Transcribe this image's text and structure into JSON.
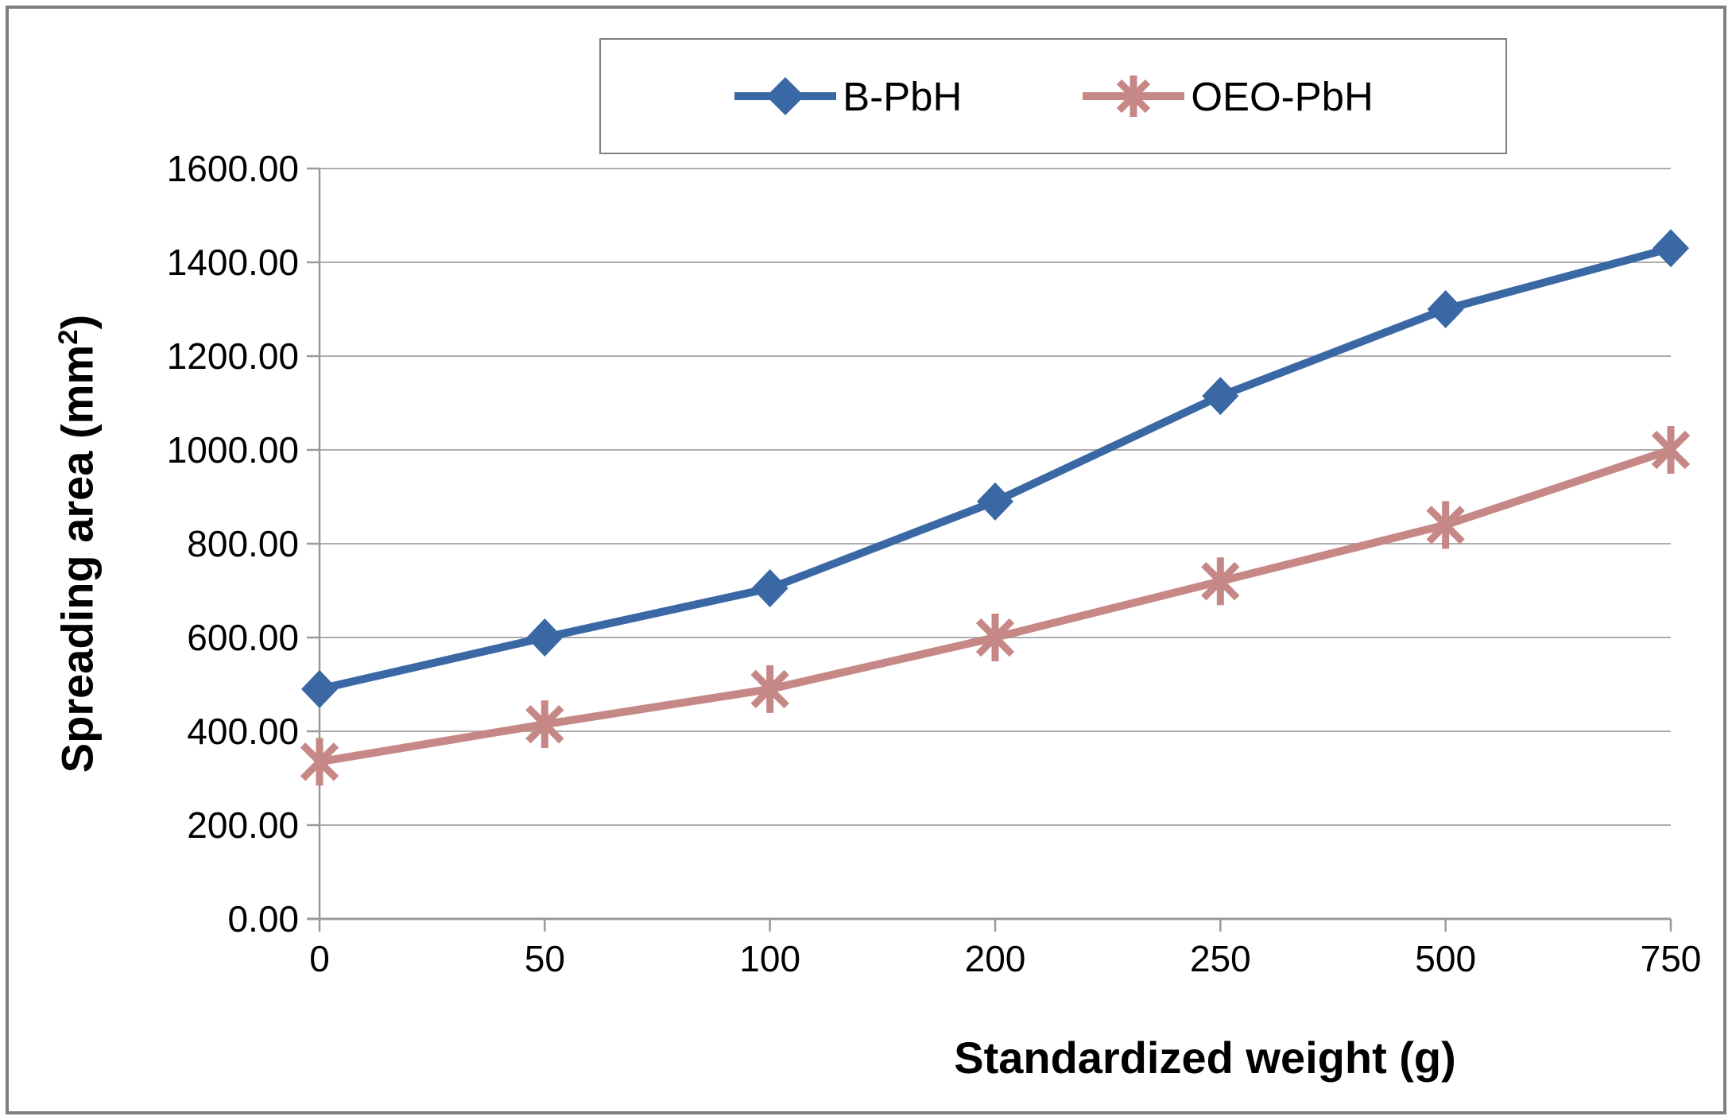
{
  "chart_data": {
    "type": "line",
    "title": "",
    "xlabel": "Standardized weight (g)",
    "ylabel": "Spreading area (mm²)",
    "ylabel_parts": {
      "prefix": "Spreading area (mm",
      "sup": "2",
      "suffix": ")"
    },
    "categories": [
      "0",
      "50",
      "100",
      "200",
      "250",
      "500",
      "750"
    ],
    "y_ticks": [
      "0.00",
      "200.00",
      "400.00",
      "600.00",
      "800.00",
      "1000.00",
      "1200.00",
      "1400.00",
      "1600.00"
    ],
    "ylim": [
      0,
      1600
    ],
    "grid": "horizontal-on",
    "legend_position": "top-center",
    "series": [
      {
        "name": "B-PbH",
        "marker": "diamond",
        "color": "#3a68a4",
        "values": [
          490,
          600,
          705,
          890,
          1115,
          1300,
          1430
        ]
      },
      {
        "name": "OEO-PbH",
        "marker": "asterisk",
        "color": "#c68886",
        "values": [
          335,
          415,
          490,
          600,
          720,
          840,
          1000
        ]
      }
    ]
  },
  "colors": {
    "gridline": "#acacac",
    "axis_line": "#999999",
    "legend_border": "#7f7f7f",
    "figure_border": "#7f7f7f",
    "background": "#ffffff",
    "text": "#000000"
  }
}
